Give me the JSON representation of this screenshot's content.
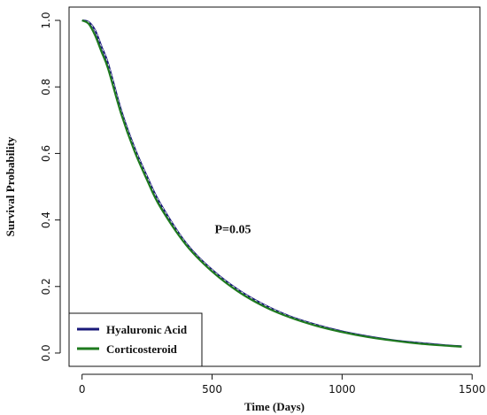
{
  "chart_data": {
    "type": "line",
    "xlabel": "Time (Days)",
    "ylabel": "Survival Probability",
    "xlim": [
      -50,
      1530
    ],
    "ylim": [
      -0.04,
      1.04
    ],
    "xticks": [
      0,
      500,
      1000,
      1500
    ],
    "yticks": [
      0.0,
      0.2,
      0.4,
      0.6,
      0.8,
      1.0
    ],
    "xtick_labels": [
      "0",
      "500",
      "1000",
      "1500"
    ],
    "ytick_labels": [
      "0.0",
      "0.2",
      "0.4",
      "0.6",
      "0.8",
      "1.0"
    ],
    "annotation": "P=0.05",
    "legend_position": "bottom-left",
    "grid": false,
    "series": [
      {
        "name": "Hyaluronic Acid",
        "color": "#1a1a7a",
        "x": [
          0,
          25,
          50,
          75,
          100,
          150,
          200,
          250,
          300,
          400,
          500,
          600,
          700,
          800,
          900,
          1000,
          1100,
          1200,
          1300,
          1400,
          1460
        ],
        "y": [
          1.0,
          0.995,
          0.97,
          0.92,
          0.87,
          0.73,
          0.62,
          0.53,
          0.45,
          0.33,
          0.25,
          0.19,
          0.145,
          0.11,
          0.085,
          0.065,
          0.05,
          0.038,
          0.03,
          0.023,
          0.02
        ]
      },
      {
        "name": "Corticosteroid",
        "color": "#1e7a1e",
        "x": [
          0,
          25,
          50,
          75,
          100,
          150,
          200,
          250,
          300,
          400,
          500,
          600,
          700,
          800,
          900,
          1000,
          1100,
          1200,
          1300,
          1400,
          1460
        ],
        "y": [
          1.0,
          0.99,
          0.955,
          0.905,
          0.855,
          0.72,
          0.61,
          0.52,
          0.44,
          0.325,
          0.245,
          0.185,
          0.14,
          0.107,
          0.082,
          0.063,
          0.048,
          0.037,
          0.028,
          0.022,
          0.019
        ]
      }
    ]
  }
}
